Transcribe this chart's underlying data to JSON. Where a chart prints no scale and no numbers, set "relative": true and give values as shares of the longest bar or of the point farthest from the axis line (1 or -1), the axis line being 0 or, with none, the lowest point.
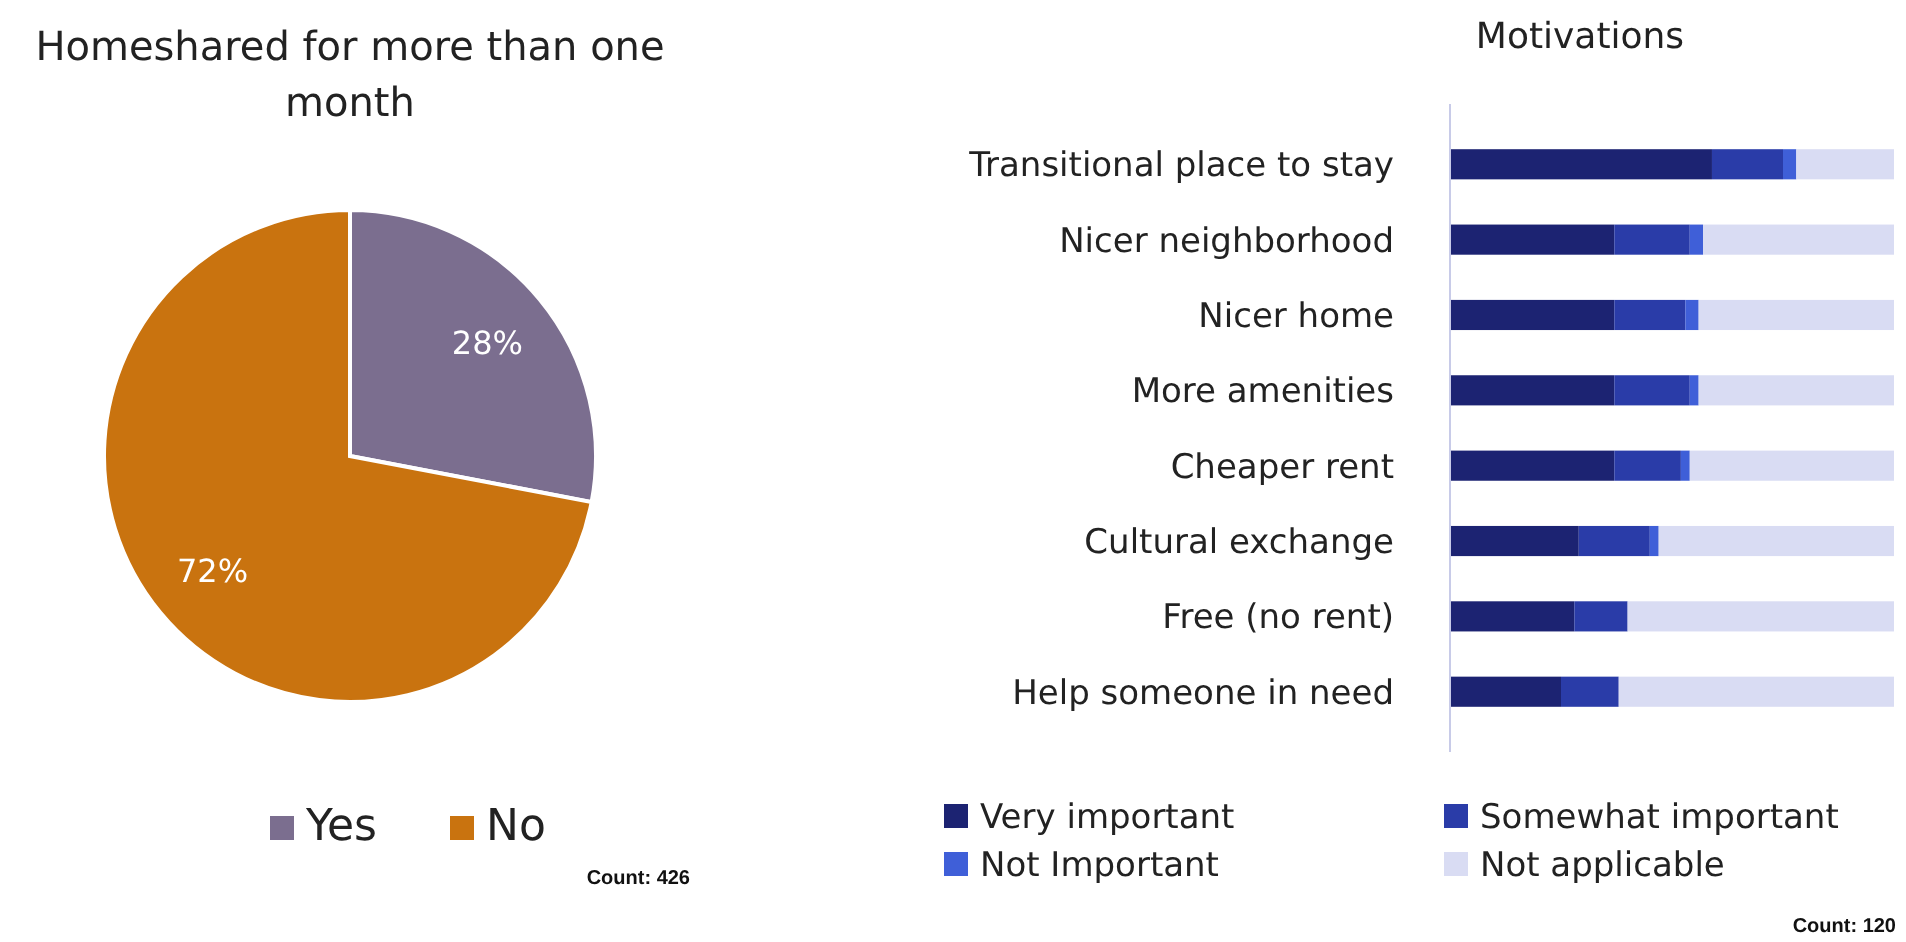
{
  "chart_data": [
    {
      "type": "pie",
      "title": "Homeshared for more than one month",
      "categories": [
        "Yes",
        "No"
      ],
      "values": [
        28,
        72
      ],
      "colors": [
        "#7b6e8f",
        "#c9730f"
      ],
      "value_labels": [
        "28%",
        "72%"
      ],
      "legend": "bottom",
      "annotations": [
        "Count: 426"
      ]
    },
    {
      "type": "bar",
      "title": "Motivations",
      "orientation": "horizontal",
      "stacked": true,
      "relative": true,
      "legend": "bottom",
      "categories": [
        "Transitional place to stay",
        "Nicer neighborhood",
        "Nicer home",
        "More amenities",
        "Cheaper rent",
        "Cultural exchange",
        "Free (no rent)",
        "Help someone in need"
      ],
      "series": [
        {
          "name": "Very important",
          "color": "#1c2372",
          "values": [
            0.59,
            0.37,
            0.37,
            0.37,
            0.37,
            0.29,
            0.28,
            0.25
          ]
        },
        {
          "name": "Somewhat important",
          "color": "#2a3ca8",
          "values": [
            0.16,
            0.17,
            0.16,
            0.17,
            0.15,
            0.16,
            0.12,
            0.13
          ]
        },
        {
          "name": "Not Important",
          "color": "#3f5fd8",
          "values": [
            0.03,
            0.03,
            0.03,
            0.02,
            0.02,
            0.02,
            0,
            0
          ]
        },
        {
          "name": "Not applicable",
          "color": "#d9dcf3",
          "values": [
            0.22,
            0.43,
            0.44,
            0.44,
            0.46,
            0.53,
            0.6,
            0.62
          ]
        }
      ],
      "annotations": [
        "Count: 120"
      ]
    }
  ]
}
